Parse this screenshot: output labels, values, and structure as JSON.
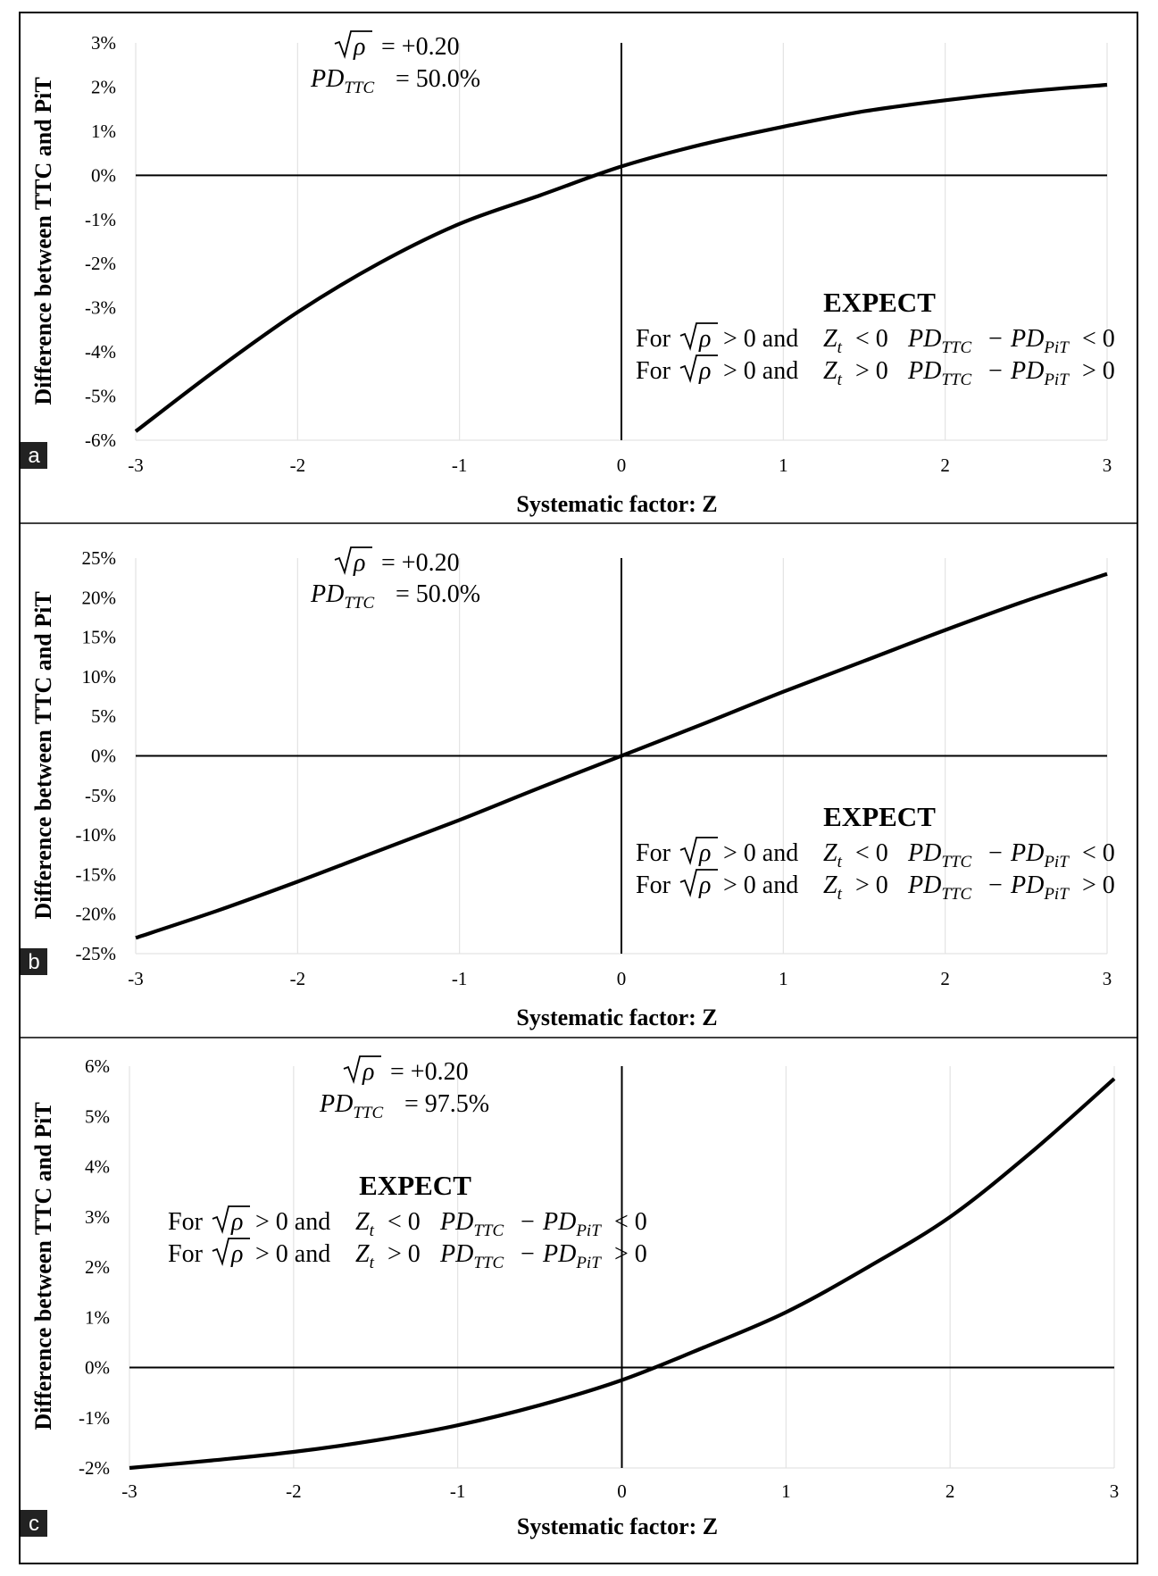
{
  "panel_labels": [
    "a",
    "b",
    "c"
  ],
  "chart_data": [
    {
      "type": "line",
      "panel": "a",
      "xlabel": "Systematic factor: Z",
      "ylabel": "Difference between TTC and PiT",
      "xlim": [
        -3,
        3
      ],
      "ylim": [
        -6,
        3
      ],
      "x_ticks": [
        "-3",
        "-2",
        "-1",
        "0",
        "1",
        "2",
        "3"
      ],
      "y_ticks": [
        "3%",
        "2%",
        "1%",
        "0%",
        "-1%",
        "-2%",
        "-3%",
        "-4%",
        "-5%",
        "-6%"
      ],
      "grid": "vertical",
      "series": [
        {
          "x": [
            -3,
            -2.5,
            -2,
            -1.5,
            -1,
            -0.5,
            0,
            0.5,
            1,
            1.5,
            2,
            2.5,
            3
          ],
          "y": [
            -5.8,
            -4.4,
            -3.1,
            -2.0,
            -1.1,
            -0.45,
            0.2,
            0.7,
            1.1,
            1.45,
            1.7,
            1.9,
            2.05
          ]
        }
      ],
      "annotation": {
        "rho": "= +0.20",
        "pd": "= 50.0%",
        "expect_title": "EXPECT",
        "line1_op": "< 0",
        "line1_diff": "< 0",
        "line2_op": "> 0",
        "line2_diff": "> 0"
      }
    },
    {
      "type": "line",
      "panel": "b",
      "xlabel": "Systematic factor: Z",
      "ylabel": "Difference between TTC and PiT",
      "xlim": [
        -3,
        3
      ],
      "ylim": [
        -25,
        25
      ],
      "x_ticks": [
        "-3",
        "-2",
        "-1",
        "0",
        "1",
        "2",
        "3"
      ],
      "y_ticks": [
        "25%",
        "20%",
        "15%",
        "10%",
        "5%",
        "0%",
        "-5%",
        "-10%",
        "-15%",
        "-20%",
        "-25%"
      ],
      "grid": "vertical",
      "series": [
        {
          "x": [
            -3,
            -2.5,
            -2,
            -1.5,
            -1,
            -0.5,
            0,
            0.5,
            1,
            1.5,
            2,
            2.5,
            3
          ],
          "y": [
            -23,
            -19.6,
            -15.9,
            -12.0,
            -8.1,
            -4.0,
            0,
            4.0,
            8.1,
            12.0,
            15.9,
            19.6,
            23
          ]
        }
      ],
      "annotation": {
        "rho": "= +0.20",
        "pd": "= 50.0%",
        "expect_title": "EXPECT",
        "line1_op": "< 0",
        "line1_diff": "< 0",
        "line2_op": "> 0",
        "line2_diff": "> 0"
      }
    },
    {
      "type": "line",
      "panel": "c",
      "xlabel": "Systematic factor: Z",
      "ylabel": "Difference between TTC and PiT",
      "xlim": [
        -3,
        3
      ],
      "ylim": [
        -2,
        6
      ],
      "x_ticks": [
        "-3",
        "-2",
        "-1",
        "0",
        "1",
        "2",
        "3"
      ],
      "y_ticks": [
        "6%",
        "5%",
        "4%",
        "3%",
        "2%",
        "1%",
        "0%",
        "-1%",
        "-2%"
      ],
      "grid": "vertical",
      "series": [
        {
          "x": [
            -3,
            -2.5,
            -2,
            -1.5,
            -1,
            -0.5,
            0,
            0.5,
            1,
            1.5,
            2,
            2.5,
            3
          ],
          "y": [
            -2.0,
            -1.85,
            -1.68,
            -1.45,
            -1.15,
            -0.75,
            -0.25,
            0.4,
            1.1,
            2.0,
            3.0,
            4.3,
            5.75
          ]
        }
      ],
      "annotation": {
        "rho": "= +0.20",
        "pd": "= 97.5%",
        "expect_title": "EXPECT",
        "line1_op": "< 0",
        "line1_diff": "< 0",
        "line2_op": "> 0",
        "line2_diff": "> 0"
      }
    }
  ]
}
